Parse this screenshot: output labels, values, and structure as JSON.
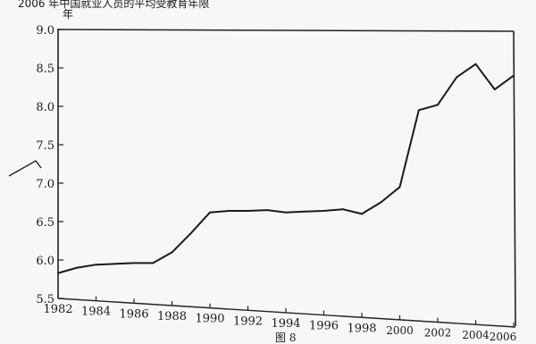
{
  "title_fragment": "2006 年中国就业人员的平均受教育年限",
  "y_unit": "年",
  "figure_label": "图 8",
  "chart_data": {
    "type": "line",
    "title": "",
    "xlabel": "",
    "ylabel": "年",
    "ylim": [
      5.5,
      9.0
    ],
    "xlim": [
      1982,
      2006
    ],
    "grid": false,
    "y_ticks": [
      "5.5",
      "6.0",
      "6.5",
      "7.0",
      "7.5",
      "8.0",
      "8.5",
      "9.0"
    ],
    "x_ticks": [
      "1982",
      "1984",
      "1986",
      "1988",
      "1990",
      "1992",
      "1994",
      "1996",
      "1998",
      "2000",
      "2002",
      "2004",
      "2006"
    ],
    "x": [
      1982,
      1983,
      1984,
      1985,
      1986,
      1987,
      1988,
      1989,
      1990,
      1991,
      1992,
      1993,
      1994,
      1995,
      1996,
      1997,
      1998,
      1999,
      2000,
      2001,
      2002,
      2003,
      2004,
      2005,
      2006
    ],
    "series": [
      {
        "values": [
          5.83,
          5.9,
          5.94,
          5.95,
          5.96,
          5.96,
          6.1,
          6.35,
          6.62,
          6.64,
          6.64,
          6.65,
          6.62,
          6.63,
          6.64,
          6.66,
          6.6,
          6.75,
          6.95,
          7.95,
          8.02,
          8.38,
          8.55,
          8.22,
          8.4
        ]
      }
    ]
  }
}
